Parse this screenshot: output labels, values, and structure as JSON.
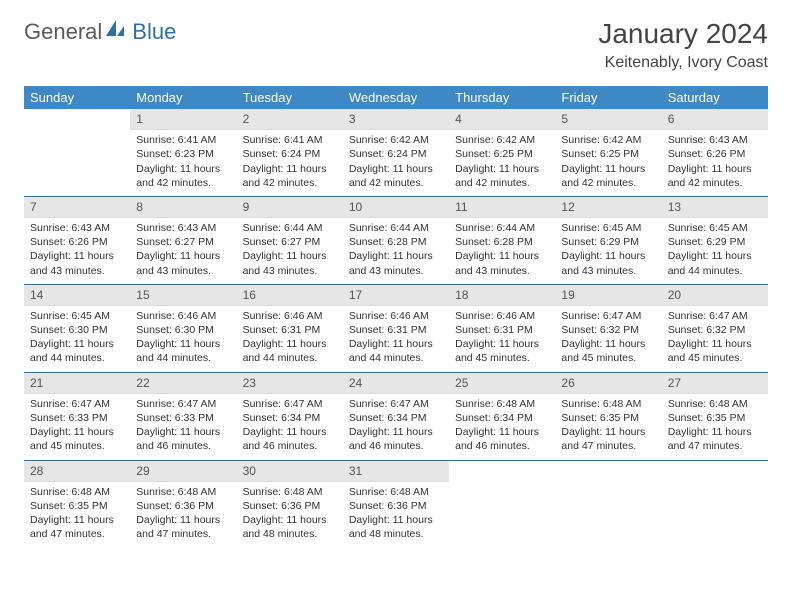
{
  "logo": {
    "word1": "General",
    "word2": "Blue"
  },
  "title": "January 2024",
  "location": "Keitenably, Ivory Coast",
  "colors": {
    "header_bg": "#3e89c5",
    "header_fg": "#ffffff",
    "daynum_bg": "#e6e6e6",
    "row_sep": "#2f6fa8",
    "logo_gray": "#5a5a5a",
    "logo_blue": "#2f6fa8"
  },
  "weekdays": [
    "Sunday",
    "Monday",
    "Tuesday",
    "Wednesday",
    "Thursday",
    "Friday",
    "Saturday"
  ],
  "weeks": [
    [
      null,
      {
        "n": "1",
        "sr": "Sunrise: 6:41 AM",
        "ss": "Sunset: 6:23 PM",
        "dl": "Daylight: 11 hours and 42 minutes."
      },
      {
        "n": "2",
        "sr": "Sunrise: 6:41 AM",
        "ss": "Sunset: 6:24 PM",
        "dl": "Daylight: 11 hours and 42 minutes."
      },
      {
        "n": "3",
        "sr": "Sunrise: 6:42 AM",
        "ss": "Sunset: 6:24 PM",
        "dl": "Daylight: 11 hours and 42 minutes."
      },
      {
        "n": "4",
        "sr": "Sunrise: 6:42 AM",
        "ss": "Sunset: 6:25 PM",
        "dl": "Daylight: 11 hours and 42 minutes."
      },
      {
        "n": "5",
        "sr": "Sunrise: 6:42 AM",
        "ss": "Sunset: 6:25 PM",
        "dl": "Daylight: 11 hours and 42 minutes."
      },
      {
        "n": "6",
        "sr": "Sunrise: 6:43 AM",
        "ss": "Sunset: 6:26 PM",
        "dl": "Daylight: 11 hours and 42 minutes."
      }
    ],
    [
      {
        "n": "7",
        "sr": "Sunrise: 6:43 AM",
        "ss": "Sunset: 6:26 PM",
        "dl": "Daylight: 11 hours and 43 minutes."
      },
      {
        "n": "8",
        "sr": "Sunrise: 6:43 AM",
        "ss": "Sunset: 6:27 PM",
        "dl": "Daylight: 11 hours and 43 minutes."
      },
      {
        "n": "9",
        "sr": "Sunrise: 6:44 AM",
        "ss": "Sunset: 6:27 PM",
        "dl": "Daylight: 11 hours and 43 minutes."
      },
      {
        "n": "10",
        "sr": "Sunrise: 6:44 AM",
        "ss": "Sunset: 6:28 PM",
        "dl": "Daylight: 11 hours and 43 minutes."
      },
      {
        "n": "11",
        "sr": "Sunrise: 6:44 AM",
        "ss": "Sunset: 6:28 PM",
        "dl": "Daylight: 11 hours and 43 minutes."
      },
      {
        "n": "12",
        "sr": "Sunrise: 6:45 AM",
        "ss": "Sunset: 6:29 PM",
        "dl": "Daylight: 11 hours and 43 minutes."
      },
      {
        "n": "13",
        "sr": "Sunrise: 6:45 AM",
        "ss": "Sunset: 6:29 PM",
        "dl": "Daylight: 11 hours and 44 minutes."
      }
    ],
    [
      {
        "n": "14",
        "sr": "Sunrise: 6:45 AM",
        "ss": "Sunset: 6:30 PM",
        "dl": "Daylight: 11 hours and 44 minutes."
      },
      {
        "n": "15",
        "sr": "Sunrise: 6:46 AM",
        "ss": "Sunset: 6:30 PM",
        "dl": "Daylight: 11 hours and 44 minutes."
      },
      {
        "n": "16",
        "sr": "Sunrise: 6:46 AM",
        "ss": "Sunset: 6:31 PM",
        "dl": "Daylight: 11 hours and 44 minutes."
      },
      {
        "n": "17",
        "sr": "Sunrise: 6:46 AM",
        "ss": "Sunset: 6:31 PM",
        "dl": "Daylight: 11 hours and 44 minutes."
      },
      {
        "n": "18",
        "sr": "Sunrise: 6:46 AM",
        "ss": "Sunset: 6:31 PM",
        "dl": "Daylight: 11 hours and 45 minutes."
      },
      {
        "n": "19",
        "sr": "Sunrise: 6:47 AM",
        "ss": "Sunset: 6:32 PM",
        "dl": "Daylight: 11 hours and 45 minutes."
      },
      {
        "n": "20",
        "sr": "Sunrise: 6:47 AM",
        "ss": "Sunset: 6:32 PM",
        "dl": "Daylight: 11 hours and 45 minutes."
      }
    ],
    [
      {
        "n": "21",
        "sr": "Sunrise: 6:47 AM",
        "ss": "Sunset: 6:33 PM",
        "dl": "Daylight: 11 hours and 45 minutes."
      },
      {
        "n": "22",
        "sr": "Sunrise: 6:47 AM",
        "ss": "Sunset: 6:33 PM",
        "dl": "Daylight: 11 hours and 46 minutes."
      },
      {
        "n": "23",
        "sr": "Sunrise: 6:47 AM",
        "ss": "Sunset: 6:34 PM",
        "dl": "Daylight: 11 hours and 46 minutes."
      },
      {
        "n": "24",
        "sr": "Sunrise: 6:47 AM",
        "ss": "Sunset: 6:34 PM",
        "dl": "Daylight: 11 hours and 46 minutes."
      },
      {
        "n": "25",
        "sr": "Sunrise: 6:48 AM",
        "ss": "Sunset: 6:34 PM",
        "dl": "Daylight: 11 hours and 46 minutes."
      },
      {
        "n": "26",
        "sr": "Sunrise: 6:48 AM",
        "ss": "Sunset: 6:35 PM",
        "dl": "Daylight: 11 hours and 47 minutes."
      },
      {
        "n": "27",
        "sr": "Sunrise: 6:48 AM",
        "ss": "Sunset: 6:35 PM",
        "dl": "Daylight: 11 hours and 47 minutes."
      }
    ],
    [
      {
        "n": "28",
        "sr": "Sunrise: 6:48 AM",
        "ss": "Sunset: 6:35 PM",
        "dl": "Daylight: 11 hours and 47 minutes."
      },
      {
        "n": "29",
        "sr": "Sunrise: 6:48 AM",
        "ss": "Sunset: 6:36 PM",
        "dl": "Daylight: 11 hours and 47 minutes."
      },
      {
        "n": "30",
        "sr": "Sunrise: 6:48 AM",
        "ss": "Sunset: 6:36 PM",
        "dl": "Daylight: 11 hours and 48 minutes."
      },
      {
        "n": "31",
        "sr": "Sunrise: 6:48 AM",
        "ss": "Sunset: 6:36 PM",
        "dl": "Daylight: 11 hours and 48 minutes."
      },
      null,
      null,
      null
    ]
  ]
}
